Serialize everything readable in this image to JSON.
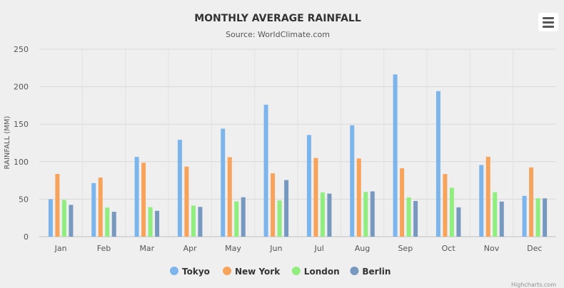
{
  "menu": {
    "icon": "hamburger-menu-icon"
  },
  "credit": "Highcharts.com",
  "chart_data": {
    "type": "bar",
    "title": "MONTHLY AVERAGE RAINFALL",
    "subtitle": "Source: WorldClimate.com",
    "ylabel": "RAINFALL (MM)",
    "xlabel": "",
    "ylim": [
      0,
      250
    ],
    "yticks": [
      0,
      50,
      100,
      150,
      200,
      250
    ],
    "grid": true,
    "legend_position": "bottom-center",
    "categories": [
      "Jan",
      "Feb",
      "Mar",
      "Apr",
      "May",
      "Jun",
      "Jul",
      "Aug",
      "Sep",
      "Oct",
      "Nov",
      "Dec"
    ],
    "series": [
      {
        "name": "Tokyo",
        "color": "#7cb5ec",
        "values": [
          49.9,
          71.5,
          106.4,
          129.2,
          144.0,
          176.0,
          135.6,
          148.5,
          216.4,
          194.1,
          95.6,
          54.4
        ]
      },
      {
        "name": "New York",
        "color": "#f7a35c",
        "values": [
          83.6,
          78.8,
          98.5,
          93.4,
          106.0,
          84.5,
          105.0,
          104.3,
          91.2,
          83.5,
          106.6,
          92.3
        ]
      },
      {
        "name": "London",
        "color": "#90ee7e",
        "values": [
          48.9,
          38.8,
          39.3,
          41.4,
          47.0,
          48.3,
          59.0,
          59.6,
          52.4,
          65.2,
          59.3,
          51.2
        ]
      },
      {
        "name": "Berlin",
        "color": "#7798bf",
        "values": [
          42.4,
          33.2,
          34.5,
          39.7,
          52.6,
          75.5,
          57.4,
          60.4,
          47.6,
          39.1,
          46.8,
          51.1
        ]
      }
    ]
  }
}
